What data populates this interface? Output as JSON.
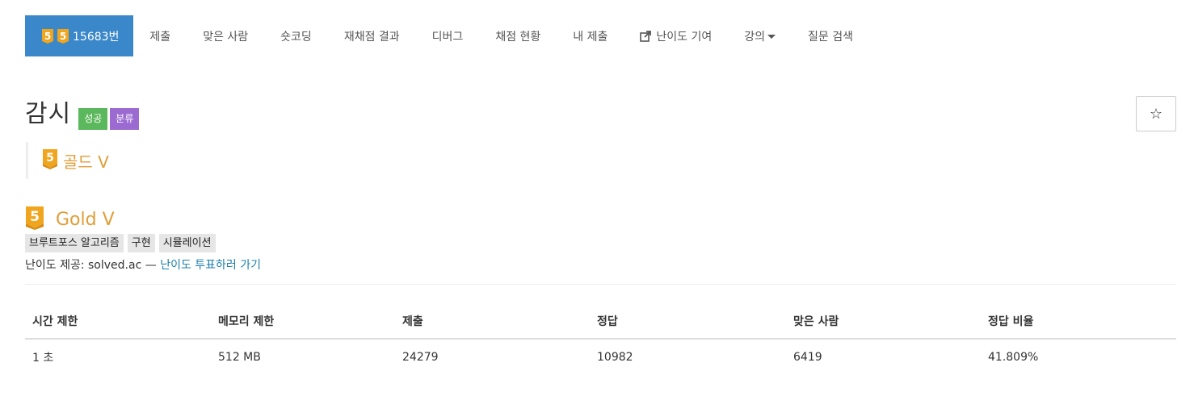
{
  "nav": {
    "items": [
      {
        "label": "15683번",
        "active": true,
        "icon": "gold-tier-icon"
      },
      {
        "label": "제출"
      },
      {
        "label": "맞은 사람"
      },
      {
        "label": "숏코딩"
      },
      {
        "label": "재채점 결과"
      },
      {
        "label": "디버그"
      },
      {
        "label": "채점 현황"
      },
      {
        "label": "내 제출"
      },
      {
        "label": "난이도 기여",
        "icon": "external-link-icon"
      },
      {
        "label": "강의",
        "icon": "caret-down-icon"
      },
      {
        "label": "질문 검색"
      }
    ],
    "tier_badge_digit": "5"
  },
  "problem": {
    "title": "감시",
    "labels": {
      "success": "성공",
      "category": "분류"
    },
    "star_symbol": "☆",
    "tier_quote": "골드 V",
    "tier_digit": "5",
    "gold_title": "Gold V",
    "tags": [
      "브루트포스 알고리즘",
      "구현",
      "시뮬레이션"
    ],
    "difficulty_prefix": "난이도 제공: solved.ac — ",
    "difficulty_link": "난이도 투표하러 가기"
  },
  "table": {
    "headers": [
      "시간 제한",
      "메모리 제한",
      "제출",
      "정답",
      "맞은 사람",
      "정답 비율"
    ],
    "row": [
      "1 초",
      "512 MB",
      "24279",
      "10982",
      "6419",
      "41.809%"
    ]
  },
  "colors": {
    "nav_active": "#3a87c9",
    "gold": "#e09e37",
    "label_success": "#5cb85c",
    "label_category": "#9b6bd1",
    "link": "#1d7fae"
  }
}
